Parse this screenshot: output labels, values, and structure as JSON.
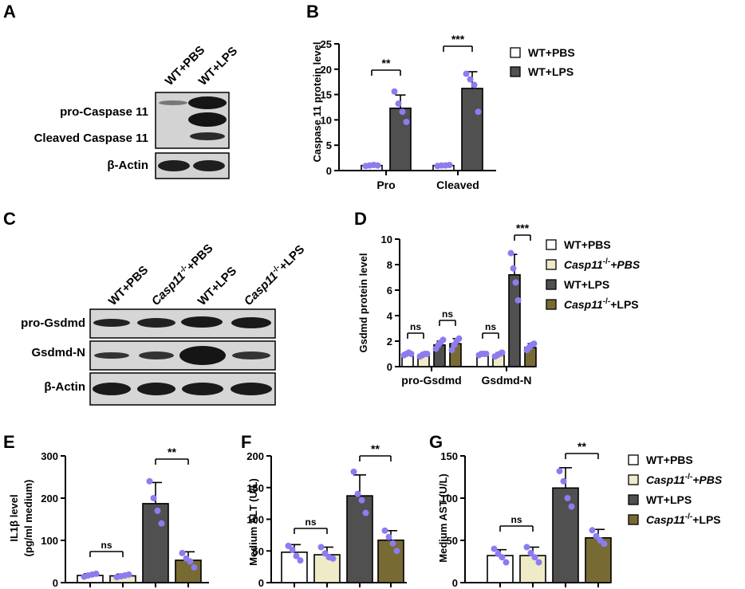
{
  "panels": {
    "A": "A",
    "B": "B",
    "C": "C",
    "D": "D",
    "E": "E",
    "F": "F",
    "G": "G"
  },
  "blot_A": {
    "lanes": [
      "WT+PBS",
      "WT+LPS"
    ],
    "rows": [
      "pro-Caspase 11",
      "Cleaved Caspase 11",
      "β-Actin"
    ]
  },
  "blot_C": {
    "lanes": [
      {
        "main": "WT+PBS",
        "sup": "",
        "rest": ""
      },
      {
        "main": "Casp11",
        "sup": "-/-",
        "rest": "+PBS"
      },
      {
        "main": "WT+LPS",
        "sup": "",
        "rest": ""
      },
      {
        "main": "Casp11",
        "sup": "-/-",
        "rest": "+LPS"
      }
    ],
    "rows": [
      "pro-Gsdmd",
      "Gsdmd-N",
      "β-Actin"
    ]
  },
  "legend_B": [
    {
      "label": "WT+PBS",
      "color": "#ffffff"
    },
    {
      "label": "WT+LPS",
      "color": "#505050"
    }
  ],
  "legend_D": [
    {
      "italic": "",
      "sup": "",
      "rest": "WT+PBS",
      "rest_italic": false,
      "color": "#ffffff"
    },
    {
      "italic": "Casp11",
      "sup": "-/-",
      "rest": "+PBS",
      "rest_italic": true,
      "color": "#efeac8"
    },
    {
      "italic": "",
      "sup": "",
      "rest": "WT+LPS",
      "rest_italic": false,
      "color": "#505050"
    },
    {
      "italic": "Casp11",
      "sup": "-/-",
      "rest": "+LPS",
      "rest_italic": false,
      "color": "#786a33"
    }
  ],
  "legend_G": [
    {
      "italic": "",
      "sup": "",
      "rest": "WT+PBS",
      "rest_italic": false,
      "color": "#ffffff"
    },
    {
      "italic": "Casp11",
      "sup": "-/-",
      "rest": "+PBS",
      "rest_italic": true,
      "color": "#efeac8"
    },
    {
      "italic": "",
      "sup": "",
      "rest": "WT+LPS",
      "rest_italic": false,
      "color": "#505050"
    },
    {
      "italic": "Casp11",
      "sup": "-/-",
      "rest": "+LPS",
      "rest_italic": false,
      "color": "#786a33"
    }
  ],
  "chart_data": [
    {
      "id": "B",
      "type": "bar",
      "ylabel": "Caspase 11 protein level",
      "ylim": [
        0,
        25
      ],
      "yticks": [
        0,
        5,
        10,
        15,
        20,
        25
      ],
      "categories": [
        "Pro",
        "Cleaved"
      ],
      "series": [
        {
          "name": "WT+PBS",
          "color": "#ffffff",
          "values": [
            1.0,
            1.0
          ],
          "errors": [
            0.2,
            0.2
          ],
          "points": [
            [
              0.9,
              1.0,
              1.1,
              1.0
            ],
            [
              0.9,
              1.0,
              1.0,
              1.1
            ]
          ]
        },
        {
          "name": "WT+LPS",
          "color": "#505050",
          "values": [
            12.3,
            16.2
          ],
          "errors": [
            2.6,
            3.3
          ],
          "points": [
            [
              15.6,
              13.2,
              11.6,
              9.6
            ],
            [
              19.1,
              18.0,
              16.9,
              11.6
            ]
          ]
        }
      ],
      "significance": [
        {
          "category": "Pro",
          "label": "**"
        },
        {
          "category": "Cleaved",
          "label": "***"
        }
      ]
    },
    {
      "id": "D",
      "type": "bar",
      "ylabel": "Gsdmd protein level",
      "ylim": [
        0,
        10
      ],
      "yticks": [
        0,
        2,
        4,
        6,
        8,
        10
      ],
      "categories": [
        "pro-Gsdmd",
        "Gsdmd-N"
      ],
      "series": [
        {
          "name": "WT+PBS",
          "color": "#ffffff",
          "values": [
            1.0,
            1.0
          ],
          "errors": [
            0.15,
            0.1
          ],
          "points": [
            [
              0.9,
              1.0,
              1.1,
              1.0
            ],
            [
              0.9,
              1.0,
              1.0,
              1.0
            ]
          ]
        },
        {
          "name": "Casp11-/-+PBS",
          "color": "#efeac8",
          "values": [
            0.9,
            0.9
          ],
          "errors": [
            0.2,
            0.2
          ],
          "points": [
            [
              0.8,
              0.9,
              1.0,
              1.0
            ],
            [
              0.8,
              0.9,
              1.0,
              1.1
            ]
          ]
        },
        {
          "name": "WT+LPS",
          "color": "#505050",
          "values": [
            1.7,
            7.2
          ],
          "errors": [
            0.3,
            1.6
          ],
          "points": [
            [
              1.4,
              1.7,
              1.9,
              2.1
            ],
            [
              8.9,
              7.7,
              6.6,
              5.2
            ]
          ]
        },
        {
          "name": "Casp11-/-+LPS",
          "color": "#786a33",
          "values": [
            1.8,
            1.5
          ],
          "errors": [
            0.4,
            0.3
          ],
          "points": [
            [
              1.3,
              1.7,
              2.0,
              2.2
            ],
            [
              1.3,
              1.5,
              1.7,
              1.8
            ]
          ]
        }
      ],
      "significance": [
        {
          "category": "pro-Gsdmd",
          "pair": [
            0,
            1
          ],
          "label": "ns"
        },
        {
          "category": "pro-Gsdmd",
          "pair": [
            2,
            3
          ],
          "label": "ns"
        },
        {
          "category": "Gsdmd-N",
          "pair": [
            0,
            1
          ],
          "label": "ns"
        },
        {
          "category": "Gsdmd-N",
          "pair": [
            2,
            3
          ],
          "label": "***"
        }
      ]
    },
    {
      "id": "E",
      "type": "bar",
      "ylabel_lines": [
        "IL1β level",
        "(pg/ml medium)"
      ],
      "ylim": [
        0,
        300
      ],
      "yticks": [
        0,
        100,
        200,
        300
      ],
      "groups": [
        "WT+PBS",
        "Casp11-/-+PBS",
        "WT+LPS",
        "Casp11-/-+LPS"
      ],
      "colors": [
        "#ffffff",
        "#efeac8",
        "#505050",
        "#786a33"
      ],
      "values": [
        17,
        16,
        187,
        53
      ],
      "errors": [
        4,
        4,
        50,
        20
      ],
      "points": [
        [
          14,
          17,
          19,
          21
        ],
        [
          13,
          15,
          17,
          19
        ],
        [
          240,
          200,
          170,
          140
        ],
        [
          70,
          57,
          50,
          36
        ]
      ],
      "significance": [
        {
          "pair": [
            0,
            1
          ],
          "label": "ns"
        },
        {
          "pair": [
            2,
            3
          ],
          "label": "**"
        }
      ]
    },
    {
      "id": "F",
      "type": "bar",
      "ylabel": "Medium ALT (U/L)",
      "ylim": [
        0,
        200
      ],
      "yticks": [
        0,
        50,
        100,
        150,
        200
      ],
      "groups": [
        "WT+PBS",
        "Casp11-/-+PBS",
        "WT+LPS",
        "Casp11-/-+LPS"
      ],
      "colors": [
        "#ffffff",
        "#efeac8",
        "#505050",
        "#786a33"
      ],
      "values": [
        48,
        44,
        137,
        67
      ],
      "errors": [
        12,
        12,
        33,
        15
      ],
      "points": [
        [
          58,
          52,
          42,
          35
        ],
        [
          56,
          46,
          40,
          38
        ],
        [
          175,
          140,
          130,
          110
        ],
        [
          82,
          72,
          62,
          50
        ]
      ],
      "significance": [
        {
          "pair": [
            0,
            1
          ],
          "label": "ns"
        },
        {
          "pair": [
            2,
            3
          ],
          "label": "**"
        }
      ]
    },
    {
      "id": "G",
      "type": "bar",
      "ylabel": "Medium AST (U/L)",
      "ylim": [
        0,
        150
      ],
      "yticks": [
        0,
        50,
        100,
        150
      ],
      "groups": [
        "WT+PBS",
        "Casp11-/-+PBS",
        "WT+LPS",
        "Casp11-/-+LPS"
      ],
      "colors": [
        "#ffffff",
        "#efeac8",
        "#505050",
        "#786a33"
      ],
      "values": [
        32,
        32,
        112,
        53
      ],
      "errors": [
        7,
        10,
        24,
        10
      ],
      "points": [
        [
          40,
          34,
          30,
          24
        ],
        [
          42,
          35,
          30,
          24
        ],
        [
          132,
          120,
          100,
          90
        ],
        [
          62,
          55,
          50,
          46
        ]
      ],
      "significance": [
        {
          "pair": [
            0,
            1
          ],
          "label": "ns"
        },
        {
          "pair": [
            2,
            3
          ],
          "label": "**"
        }
      ]
    }
  ]
}
